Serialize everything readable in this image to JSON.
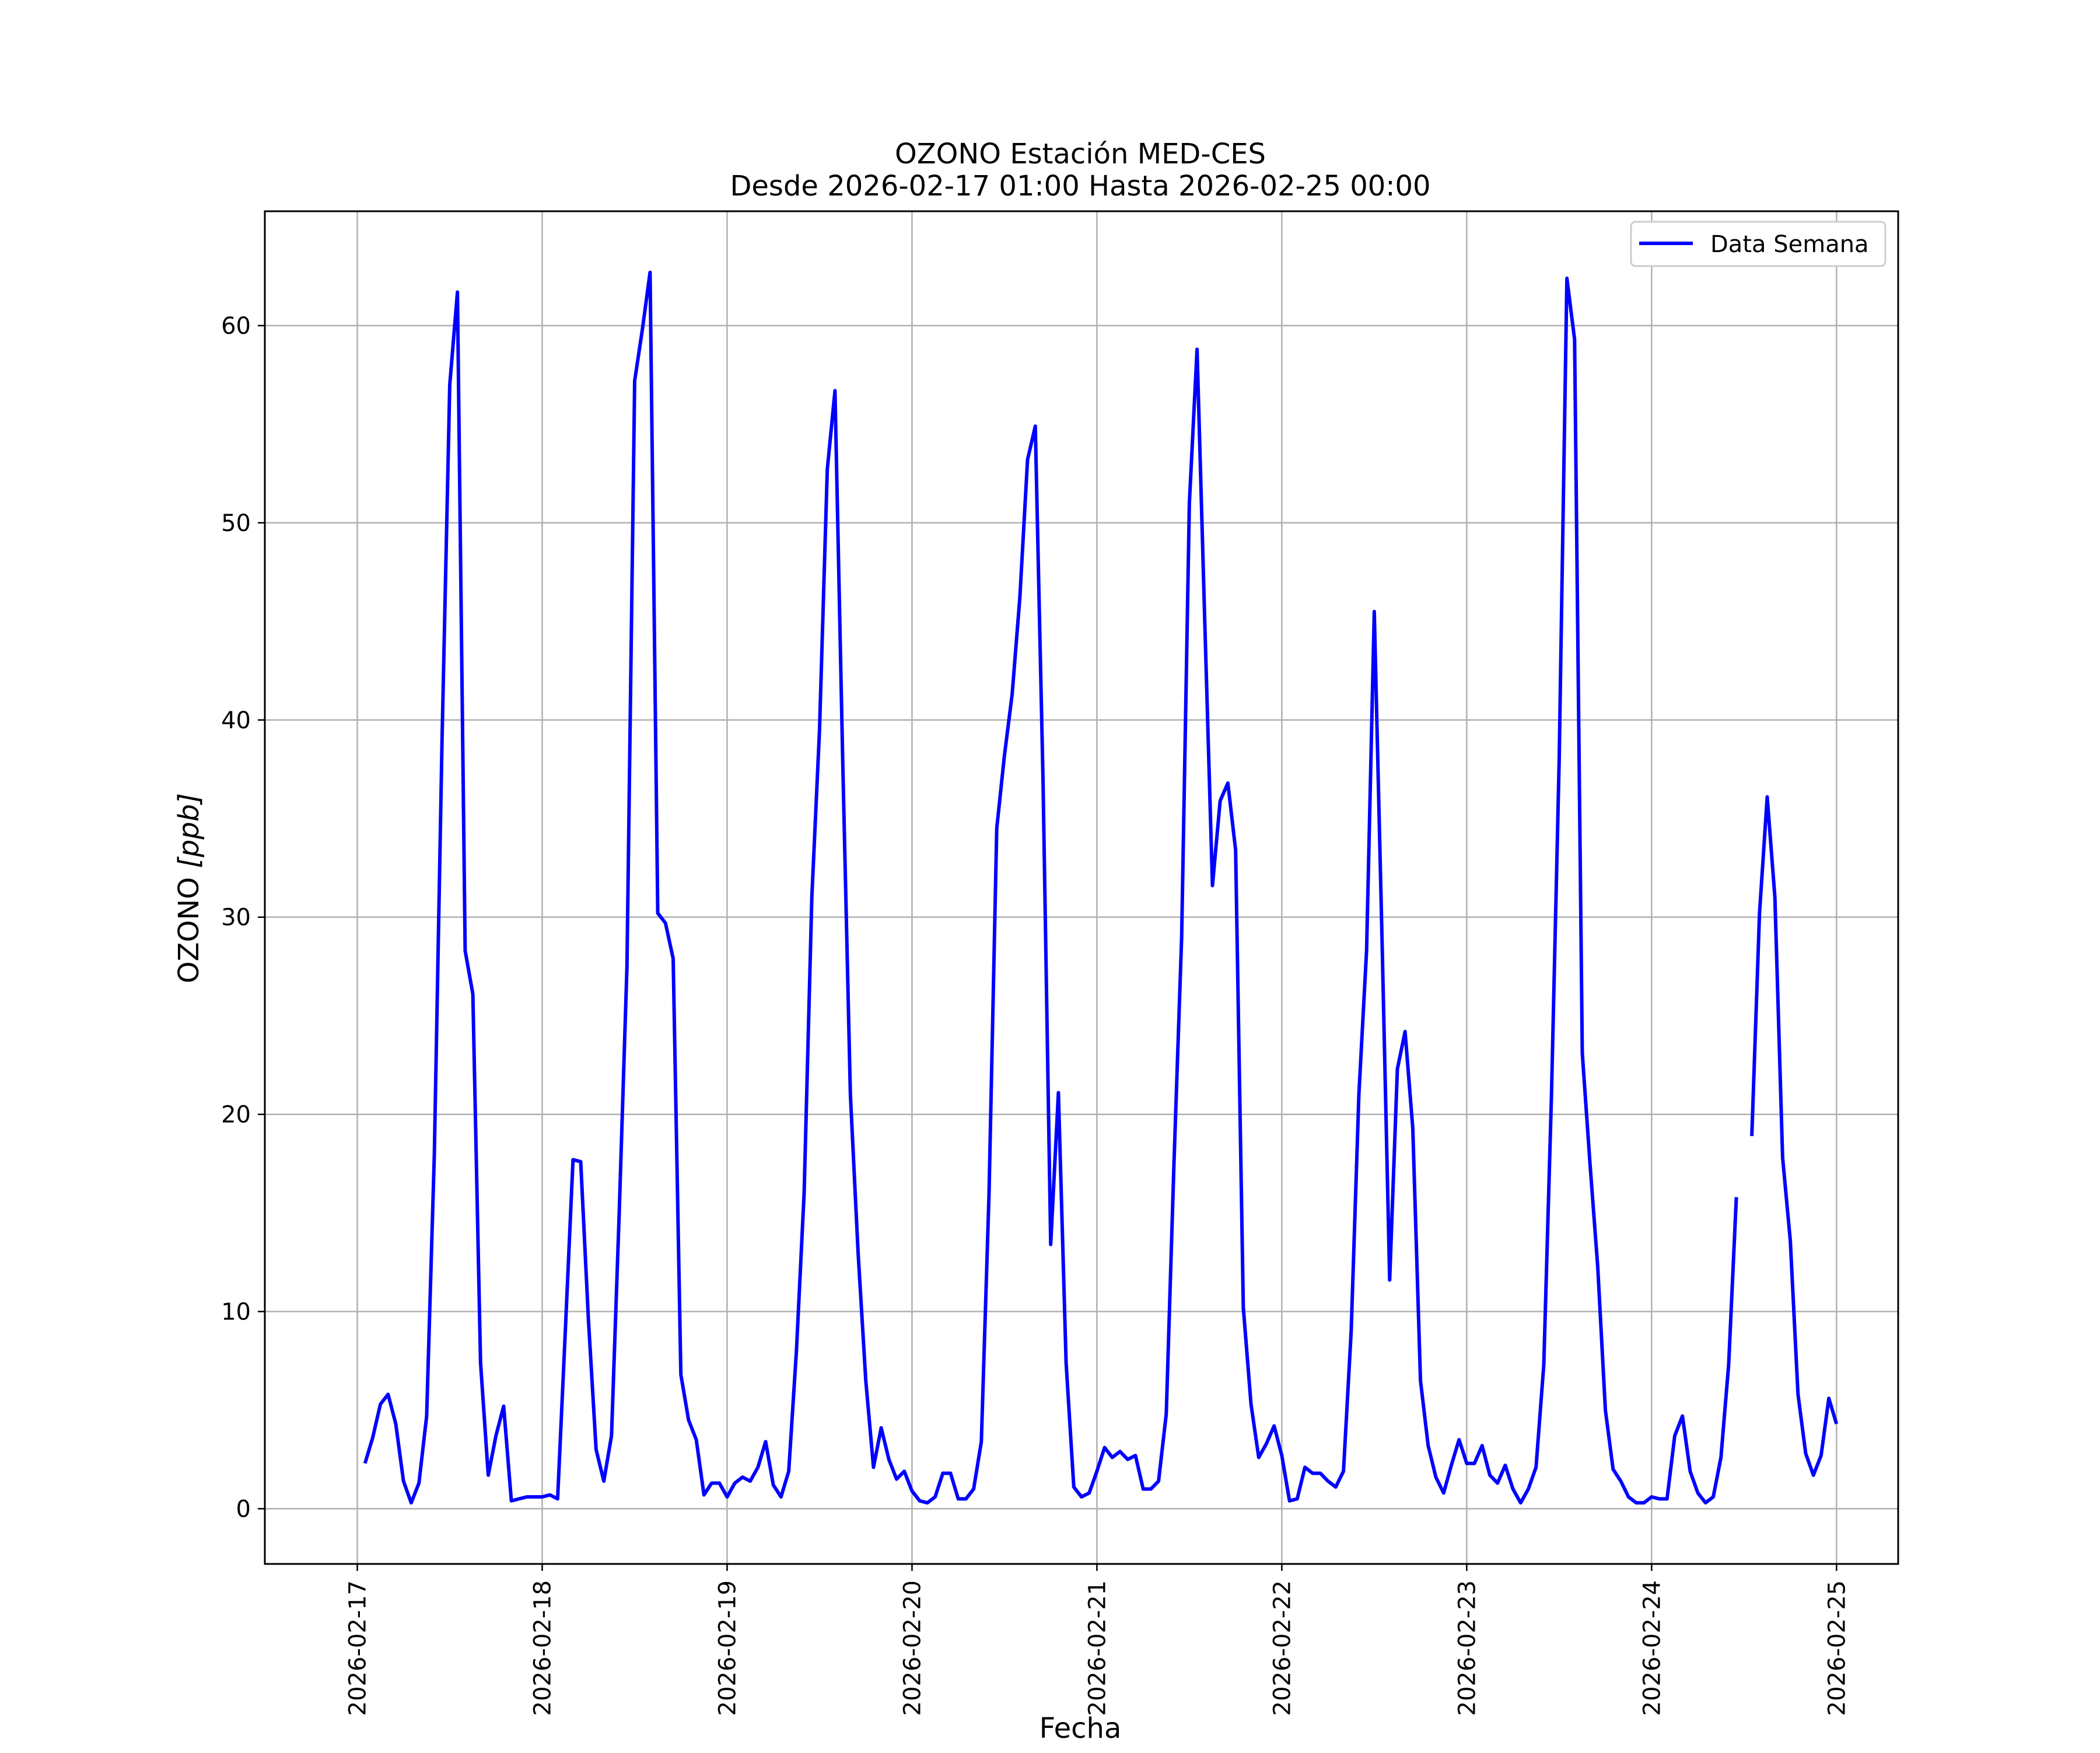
{
  "chart_data": {
    "type": "line",
    "title": "OZONO Estación MED-CES",
    "subtitle": "Desde 2026-02-17 01:00 Hasta 2026-02-25 00:00",
    "xlabel": "Fecha",
    "ylabel_main": "OZONO",
    "ylabel_unit": "[ppb]",
    "grid": true,
    "legend_position": "top-right",
    "x_ticks": [
      "2026-02-17",
      "2026-02-18",
      "2026-02-19",
      "2026-02-20",
      "2026-02-21",
      "2026-02-22",
      "2026-02-23",
      "2026-02-24",
      "2026-02-25"
    ],
    "y_ticks": [
      0,
      10,
      20,
      30,
      40,
      50,
      60
    ],
    "xlim": [
      "2026-02-16 12:00",
      "2026-02-25 08:00"
    ],
    "ylim": [
      -2.8,
      65.8
    ],
    "series": [
      {
        "name": "Data Semana",
        "color": "#0000ff",
        "x_start": "2026-02-17 01:00",
        "x_step": "1 hour",
        "values": [
          2.3,
          3.6,
          5.3,
          5.8,
          4.3,
          1.4,
          0.3,
          1.3,
          4.7,
          18.0,
          39.0,
          57.0,
          61.7,
          28.3,
          26.1,
          7.4,
          1.7,
          3.7,
          5.2,
          0.4,
          0.5,
          0.6,
          0.6,
          0.6,
          0.7,
          0.5,
          9.0,
          17.7,
          17.6,
          9.6,
          3.0,
          1.4,
          3.7,
          15.0,
          27.5,
          57.2,
          59.8,
          62.7,
          30.2,
          29.7,
          27.9,
          6.8,
          4.5,
          3.5,
          0.7,
          1.3,
          1.3,
          0.6,
          1.3,
          1.6,
          1.4,
          2.1,
          3.4,
          1.2,
          0.6,
          1.9,
          8.0,
          16.0,
          31.0,
          39.5,
          52.7,
          56.7,
          38.0,
          21.0,
          13.0,
          6.5,
          2.1,
          4.1,
          2.5,
          1.5,
          1.9,
          0.9,
          0.4,
          0.3,
          0.6,
          1.8,
          1.8,
          0.5,
          0.5,
          1.0,
          3.4,
          16.0,
          34.5,
          38.2,
          41.3,
          46.2,
          53.2,
          54.9,
          37.0,
          13.4,
          21.1,
          7.4,
          1.1,
          0.6,
          0.8,
          1.9,
          3.1,
          2.6,
          2.9,
          2.5,
          2.7,
          1.0,
          1.0,
          1.4,
          4.8,
          17.5,
          29.0,
          51.0,
          58.8,
          45.0,
          31.6,
          35.9,
          36.8,
          33.4,
          10.2,
          5.3,
          2.6,
          3.3,
          4.2,
          2.7,
          0.4,
          0.5,
          2.1,
          1.8,
          1.8,
          1.4,
          1.1,
          1.9,
          9.0,
          21.0,
          28.3,
          45.5,
          29.0,
          11.6,
          22.3,
          24.2,
          19.3,
          6.5,
          3.2,
          1.6,
          0.8,
          2.2,
          3.5,
          2.3,
          2.3,
          3.2,
          1.7,
          1.3,
          2.2,
          1.0,
          0.3,
          1.0,
          2.1,
          7.3,
          21.0,
          38.0,
          62.4,
          59.3,
          23.1,
          17.5,
          12.3,
          5.0,
          2.0,
          1.4,
          0.6,
          0.3,
          0.3,
          0.6,
          0.5,
          0.5,
          3.7,
          4.7,
          1.9,
          0.8,
          0.3,
          0.6,
          2.6,
          7.3,
          15.8,
          null,
          18.9,
          30.2,
          36.1,
          31.0,
          17.8,
          13.6,
          5.8,
          2.8,
          1.7,
          2.7,
          5.6,
          4.3
        ]
      }
    ]
  }
}
